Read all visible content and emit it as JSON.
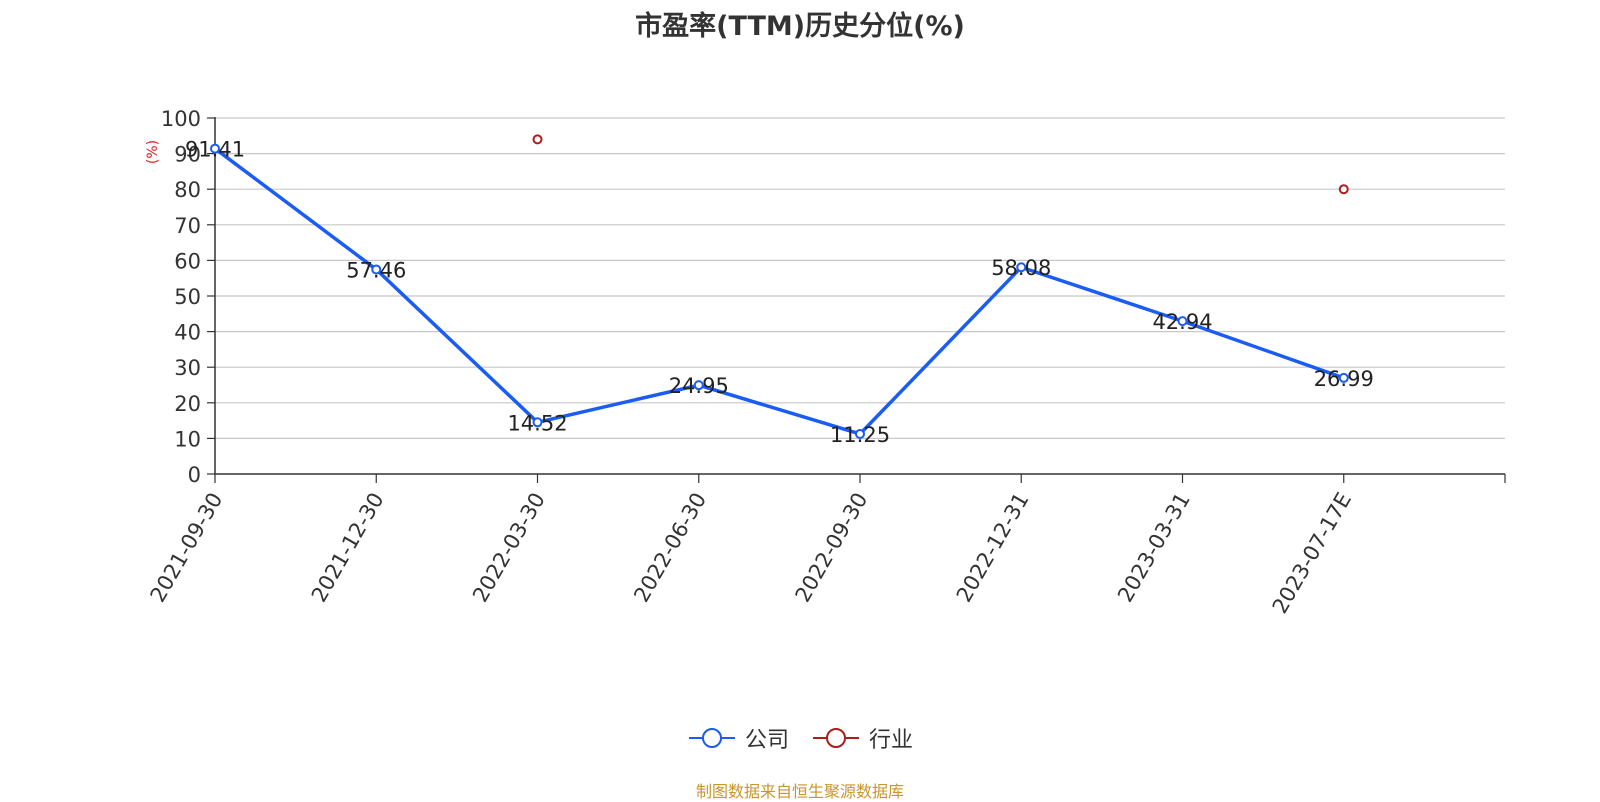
{
  "chart_data": {
    "type": "line",
    "title": "市盈率(TTM)历史分位(%)",
    "ylabel": "(%)",
    "xlabel": "",
    "ylim": [
      0,
      100
    ],
    "yticks": [
      "0",
      "10",
      "20",
      "30",
      "40",
      "50",
      "60",
      "70",
      "80",
      "90",
      "100"
    ],
    "categories": [
      "2021-09-30",
      "2021-12-30",
      "2022-03-30",
      "2022-06-30",
      "2022-09-30",
      "2022-12-31",
      "2023-03-31",
      "2023-07-17E"
    ],
    "grid": true,
    "legend_position": "bottom",
    "series": [
      {
        "name": "公司",
        "color": "#1a5cf4",
        "values": [
          91.41,
          57.46,
          14.52,
          24.95,
          11.25,
          58.08,
          42.94,
          26.99
        ],
        "labels": [
          "91.41",
          "57.46",
          "14.52",
          "24.95",
          "11.25",
          "58.08",
          "42.94",
          "26.99"
        ]
      },
      {
        "name": "行业",
        "color": "#b01c1c",
        "values": [
          null,
          null,
          94,
          null,
          null,
          null,
          null,
          80
        ]
      }
    ]
  },
  "source_note": "制图数据来自恒生聚源数据库"
}
